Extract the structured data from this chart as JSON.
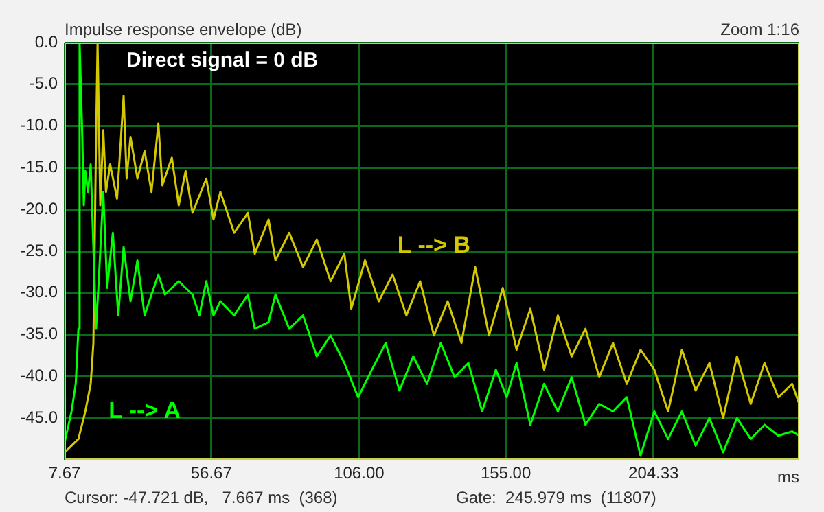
{
  "chart_data": {
    "type": "line",
    "ylabel": "Impulse response envelope (dB)",
    "xlabel": "ms",
    "xlim": [
      7.67,
      253
    ],
    "ylim": [
      -50,
      0
    ],
    "xticks": [
      7.67,
      56.67,
      {
        "value": 106,
        "label": "106.00"
      },
      {
        "value": 155,
        "label": "155.00"
      },
      204.33
    ],
    "yticks": [
      {
        "value": 0,
        "label": "0.0"
      },
      {
        "value": -5,
        "label": "-5.0"
      },
      {
        "value": -10,
        "label": "-10.0"
      },
      {
        "value": -15,
        "label": "-15.0"
      },
      {
        "value": -20,
        "label": "-20.0"
      },
      {
        "value": -25,
        "label": "-25.0"
      },
      {
        "value": -30,
        "label": "-30.0"
      },
      {
        "value": -35,
        "label": "-35.0"
      },
      {
        "value": -40,
        "label": "-40.0"
      },
      {
        "value": -45,
        "label": "-45.0"
      }
    ],
    "grid": true,
    "legend": false,
    "marker": "none",
    "line_style": "solid",
    "annotations": [
      "Direct signal = 0 dB",
      "Zoom 1:16",
      "Cursor: -47.721 dB,   7.667 ms  (368)",
      "Gate:  245.979 ms  (11807)"
    ],
    "series": [
      {
        "name": "L --> A",
        "color": "#00ff00",
        "x": [
          7.7,
          10.0,
          11.4,
          12.3,
          12.7,
          13.6,
          14.1,
          14.6,
          15.5,
          16.4,
          17.3,
          18.2,
          19.2,
          20.6,
          21.9,
          23.8,
          25.6,
          27.4,
          29.7,
          32.0,
          34.4,
          36.7,
          39.0,
          41.2,
          45.8,
          50.4,
          52.7,
          55.0,
          57.4,
          59.7,
          64.3,
          68.9,
          71.2,
          75.8,
          78.1,
          82.7,
          87.3,
          91.9,
          96.5,
          101.1,
          105.7,
          110.3,
          114.9,
          119.5,
          124.1,
          128.7,
          133.3,
          137.9,
          142.5,
          147.1,
          151.7,
          155.3,
          158.6,
          163.2,
          167.8,
          172.4,
          177.0,
          181.6,
          186.2,
          190.8,
          195.4,
          200.0,
          204.6,
          209.2,
          213.8,
          218.4,
          223.0,
          227.6,
          232.2,
          236.8,
          241.4,
          246.0,
          250.6,
          253.0
        ],
        "values": [
          -47.9,
          -44.2,
          -40.9,
          -34.3,
          0,
          -11.3,
          -19.5,
          -15.4,
          -17.9,
          -14.6,
          -24.5,
          -34.3,
          -27.8,
          -17.9,
          -29.4,
          -22.8,
          -32.7,
          -24.5,
          -31.0,
          -26.1,
          -32.7,
          -30.2,
          -27.8,
          -30.2,
          -28.6,
          -30.2,
          -32.7,
          -28.6,
          -32.7,
          -31.0,
          -32.7,
          -30.2,
          -34.3,
          -33.5,
          -30.2,
          -34.3,
          -32.7,
          -37.6,
          -35.1,
          -38.4,
          -42.5,
          -39.2,
          -36.0,
          -41.7,
          -37.6,
          -40.9,
          -36.0,
          -40.1,
          -38.4,
          -44.2,
          -39.2,
          -42.5,
          -38.4,
          -45.8,
          -40.9,
          -44.2,
          -40.1,
          -45.8,
          -43.3,
          -44.2,
          -42.5,
          -49.5,
          -44.2,
          -47.5,
          -44.2,
          -48.3,
          -45.0,
          -49.1,
          -45.0,
          -47.5,
          -45.8,
          -47.1,
          -46.6,
          -47.1
        ]
      },
      {
        "name": "L --> B",
        "color": "#d4c800",
        "x": [
          7.7,
          10.0,
          12.3,
          14.6,
          16.4,
          17.3,
          18.2,
          18.7,
          19.6,
          20.6,
          21.5,
          22.9,
          25.2,
          27.4,
          28.4,
          29.7,
          32.0,
          34.4,
          36.7,
          39.0,
          40.3,
          43.5,
          45.8,
          48.1,
          50.4,
          55.0,
          57.4,
          59.7,
          64.3,
          68.9,
          71.2,
          75.8,
          78.1,
          82.7,
          87.3,
          91.9,
          96.5,
          101.1,
          103.4,
          108.0,
          112.6,
          117.2,
          121.8,
          126.4,
          131.0,
          135.6,
          140.2,
          144.8,
          149.4,
          154.0,
          158.6,
          163.2,
          167.8,
          172.4,
          177.0,
          181.6,
          186.2,
          190.8,
          195.4,
          200.0,
          204.6,
          209.2,
          213.8,
          218.4,
          223.0,
          227.6,
          232.2,
          236.8,
          241.4,
          246.0,
          250.6,
          253.0
        ],
        "values": [
          -49.1,
          -48.3,
          -47.5,
          -44.2,
          -40.9,
          -36.0,
          -11.3,
          0,
          -19.5,
          -10.5,
          -17.9,
          -14.6,
          -18.7,
          -6.4,
          -16.3,
          -11.3,
          -16.3,
          -13.0,
          -17.9,
          -9.7,
          -17.1,
          -13.8,
          -19.5,
          -15.4,
          -20.4,
          -16.3,
          -21.2,
          -17.9,
          -22.8,
          -20.4,
          -25.3,
          -21.2,
          -26.1,
          -22.8,
          -26.9,
          -23.6,
          -28.6,
          -25.3,
          -31.9,
          -26.1,
          -31.0,
          -27.8,
          -32.7,
          -28.6,
          -35.1,
          -31.0,
          -36.0,
          -26.9,
          -35.1,
          -29.4,
          -36.8,
          -31.9,
          -39.2,
          -32.7,
          -37.6,
          -34.3,
          -40.1,
          -36.0,
          -40.9,
          -36.8,
          -39.2,
          -44.2,
          -36.8,
          -41.7,
          -38.4,
          -45.0,
          -37.6,
          -43.3,
          -38.4,
          -42.5,
          -40.9,
          -43.3
        ]
      }
    ]
  }
}
